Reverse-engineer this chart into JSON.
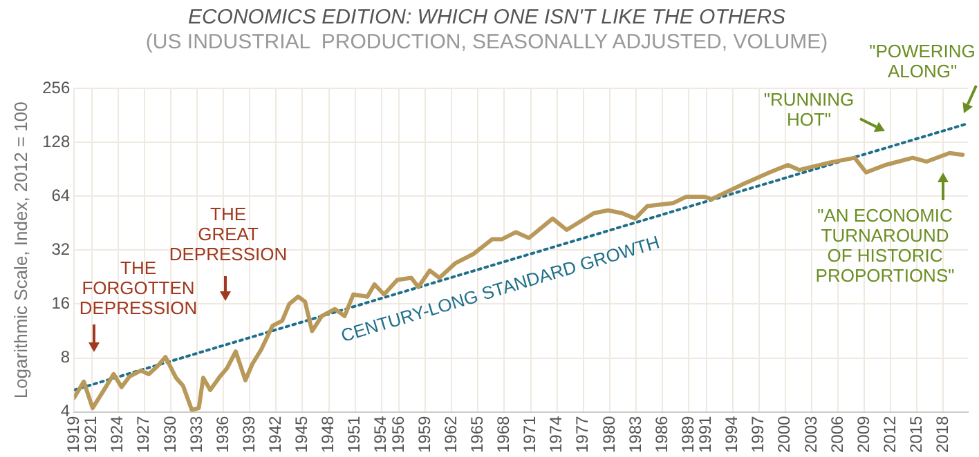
{
  "chart_data": {
    "type": "line",
    "title": "ECONOMICS EDITION: WHICH ONE ISN'T LIKE THE OTHERS",
    "subtitle": "(US INDUSTRIAL  PRODUCTION, SEASONALLY ADJUSTED, VOLUME)",
    "ylabel": "Logarithmic Scale, Index, 2012 = 100",
    "log": "y",
    "grid": true,
    "legend": false,
    "marker": "none",
    "xlim": [
      1919,
      2020.8
    ],
    "xticks": [
      1919,
      1921,
      1924,
      1927,
      1930,
      1933,
      1936,
      1939,
      1942,
      1945,
      1948,
      1951,
      1954,
      1956,
      1959,
      1962,
      1965,
      1968,
      1971,
      1974,
      1977,
      1980,
      1983,
      1986,
      1989,
      1991,
      1994,
      1997,
      2000,
      2003,
      2006,
      2009,
      2012,
      2015,
      2018
    ],
    "ylim": [
      4,
      256
    ],
    "yticks": [
      4,
      8,
      16,
      32,
      64,
      128,
      256
    ],
    "series": [
      {
        "color": "#b8995a",
        "line_style": "solid",
        "x": [
          1919,
          1920.1,
          1921.1,
          1922.4,
          1923.5,
          1924.4,
          1925.3,
          1926.6,
          1927.5,
          1928.5,
          1929.4,
          1930.6,
          1931.4,
          1932.4,
          1933.2,
          1933.7,
          1934.5,
          1935.6,
          1936.4,
          1937.4,
          1938.5,
          1939.3,
          1940.3,
          1941.6,
          1942.7,
          1943.5,
          1944.5,
          1945.3,
          1946.1,
          1947.2,
          1948.7,
          1949.8,
          1950.8,
          1952.4,
          1953.2,
          1954.3,
          1955.8,
          1957.4,
          1958.2,
          1959.5,
          1960.6,
          1962.4,
          1964.5,
          1966.6,
          1967.7,
          1969.3,
          1970.8,
          1973.5,
          1975.1,
          1978.2,
          1979.8,
          1981.4,
          1982.9,
          1984.3,
          1987.2,
          1988.7,
          1990.8,
          1991.6,
          1995,
          1998.2,
          2000.3,
          2001.6,
          2005.1,
          2007.9,
          2009.2,
          2011.4,
          2014.5,
          2016.1,
          2018.7,
          2020.2
        ],
        "values": [
          4.8,
          5.9,
          4.2,
          5.3,
          6.5,
          5.5,
          6.3,
          6.8,
          6.5,
          7.2,
          8.1,
          6.2,
          5.6,
          4.1,
          4.2,
          6.2,
          5.3,
          6.3,
          7,
          8.7,
          6,
          7.4,
          8.9,
          12.1,
          12.9,
          16,
          17.6,
          16.5,
          11.3,
          13.7,
          15,
          13.7,
          18.1,
          17.6,
          20.6,
          18.1,
          21.8,
          22.4,
          19.9,
          24.6,
          22.4,
          27,
          30.5,
          36.8,
          36.8,
          40.3,
          37.4,
          48,
          41.5,
          51.5,
          53.3,
          51.5,
          48,
          56.4,
          58.5,
          63.5,
          63.5,
          61.6,
          74,
          86.9,
          95.6,
          89.7,
          98.7,
          104.8,
          86.9,
          95.6,
          104.8,
          99.9,
          111.4,
          109
        ]
      },
      {
        "color": "#1f6f8b",
        "line_style": "dotted",
        "x": [
          1919,
          2020.8
        ],
        "values": [
          5.3,
          163
        ]
      }
    ],
    "annotations": [
      "THE\nFORGOTTEN\nDEPRESSION",
      "THE\nGREAT\nDEPRESSION",
      "CENTURY-LONG STANDARD GROWTH",
      "\"RUNNING\nHOT\"",
      "\"POWERING\nALONG\"",
      "\"AN ECONOMIC\nTURNAROUND\nOF HISTORIC\nPROPORTIONS\""
    ]
  }
}
